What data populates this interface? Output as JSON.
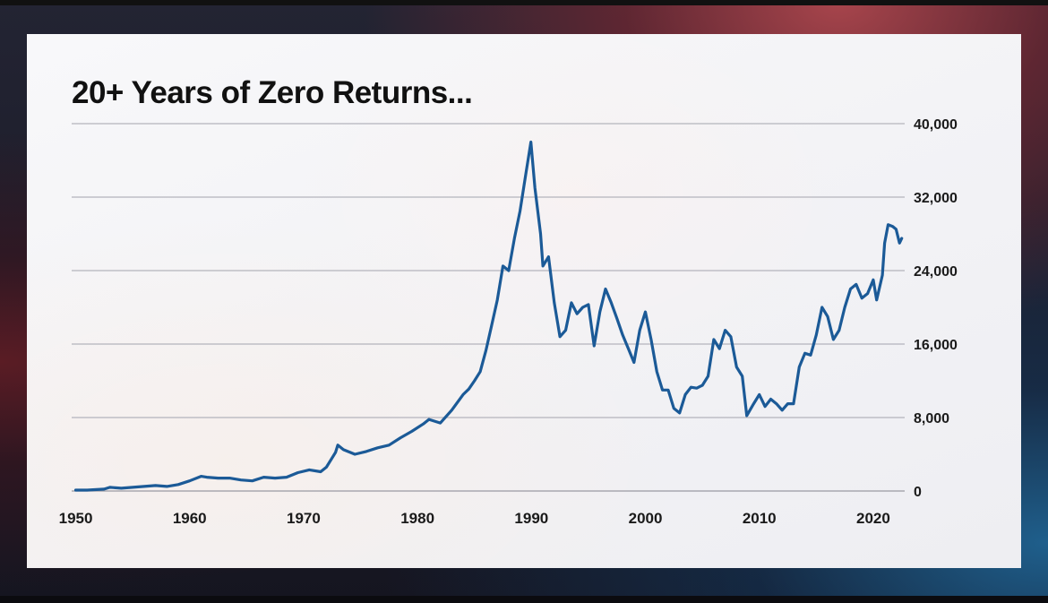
{
  "chart_data": {
    "type": "line",
    "title": "20+ Years of Zero Returns...",
    "xlabel": "",
    "ylabel": "",
    "xlim": [
      1949.8,
      2022.6
    ],
    "ylim": [
      0,
      40000
    ],
    "grid": true,
    "y_axis_side": "right",
    "x_ticks": [
      1950,
      1960,
      1970,
      1980,
      1990,
      2000,
      2010,
      2020
    ],
    "x_tick_labels": [
      "1950",
      "1960",
      "1970",
      "1980",
      "1990",
      "2000",
      "2010",
      "2020"
    ],
    "y_ticks": [
      0,
      8000,
      16000,
      24000,
      32000,
      40000
    ],
    "y_tick_labels": [
      "0",
      "8,000",
      "16,000",
      "24,000",
      "32,000",
      "40,000"
    ],
    "line_color": "#1b5a97",
    "series": [
      {
        "values": [
          [
            1950.0,
            100
          ],
          [
            1951.0,
            100
          ],
          [
            1952.5,
            200
          ],
          [
            1953.0,
            400
          ],
          [
            1954.0,
            300
          ],
          [
            1955.0,
            400
          ],
          [
            1956.0,
            500
          ],
          [
            1957.0,
            600
          ],
          [
            1958.0,
            500
          ],
          [
            1959.0,
            700
          ],
          [
            1960.0,
            1100
          ],
          [
            1961.0,
            1600
          ],
          [
            1961.5,
            1500
          ],
          [
            1962.5,
            1400
          ],
          [
            1963.5,
            1400
          ],
          [
            1964.5,
            1200
          ],
          [
            1965.5,
            1100
          ],
          [
            1966.5,
            1500
          ],
          [
            1967.5,
            1400
          ],
          [
            1968.5,
            1500
          ],
          [
            1969.5,
            2000
          ],
          [
            1970.5,
            2300
          ],
          [
            1971.5,
            2100
          ],
          [
            1972.0,
            2600
          ],
          [
            1972.8,
            4200
          ],
          [
            1973.0,
            5000
          ],
          [
            1973.5,
            4500
          ],
          [
            1974.5,
            4000
          ],
          [
            1975.5,
            4300
          ],
          [
            1976.5,
            4700
          ],
          [
            1977.5,
            5000
          ],
          [
            1978.5,
            5800
          ],
          [
            1979.5,
            6500
          ],
          [
            1980.5,
            7300
          ],
          [
            1981.0,
            7800
          ],
          [
            1982.0,
            7400
          ],
          [
            1983.0,
            8800
          ],
          [
            1984.0,
            10500
          ],
          [
            1984.5,
            11100
          ],
          [
            1985.0,
            12000
          ],
          [
            1985.5,
            13000
          ],
          [
            1986.0,
            15300
          ],
          [
            1986.5,
            18000
          ],
          [
            1987.0,
            20800
          ],
          [
            1987.5,
            24500
          ],
          [
            1988.0,
            24000
          ],
          [
            1988.5,
            27500
          ],
          [
            1989.0,
            30500
          ],
          [
            1989.5,
            34500
          ],
          [
            1989.95,
            38000
          ],
          [
            1990.3,
            33000
          ],
          [
            1990.8,
            28000
          ],
          [
            1991.0,
            24500
          ],
          [
            1991.5,
            25500
          ],
          [
            1992.0,
            20500
          ],
          [
            1992.5,
            16800
          ],
          [
            1993.0,
            17500
          ],
          [
            1993.5,
            20500
          ],
          [
            1994.0,
            19300
          ],
          [
            1994.5,
            20000
          ],
          [
            1995.0,
            20300
          ],
          [
            1995.5,
            15800
          ],
          [
            1996.0,
            19500
          ],
          [
            1996.5,
            22000
          ],
          [
            1997.0,
            20500
          ],
          [
            1997.5,
            18800
          ],
          [
            1998.0,
            17000
          ],
          [
            1998.5,
            15500
          ],
          [
            1999.0,
            14000
          ],
          [
            1999.5,
            17500
          ],
          [
            2000.0,
            19500
          ],
          [
            2000.5,
            16500
          ],
          [
            2001.0,
            13000
          ],
          [
            2001.5,
            11000
          ],
          [
            2002.0,
            11000
          ],
          [
            2002.5,
            9000
          ],
          [
            2003.0,
            8500
          ],
          [
            2003.5,
            10500
          ],
          [
            2004.0,
            11300
          ],
          [
            2004.5,
            11200
          ],
          [
            2005.0,
            11500
          ],
          [
            2005.5,
            12500
          ],
          [
            2006.0,
            16500
          ],
          [
            2006.5,
            15500
          ],
          [
            2007.0,
            17500
          ],
          [
            2007.5,
            16800
          ],
          [
            2008.0,
            13500
          ],
          [
            2008.5,
            12500
          ],
          [
            2008.9,
            8200
          ],
          [
            2009.5,
            9500
          ],
          [
            2010.0,
            10500
          ],
          [
            2010.5,
            9200
          ],
          [
            2011.0,
            10000
          ],
          [
            2011.5,
            9500
          ],
          [
            2012.0,
            8800
          ],
          [
            2012.5,
            9500
          ],
          [
            2013.0,
            9500
          ],
          [
            2013.5,
            13500
          ],
          [
            2014.0,
            15000
          ],
          [
            2014.5,
            14800
          ],
          [
            2015.0,
            17000
          ],
          [
            2015.5,
            20000
          ],
          [
            2016.0,
            19000
          ],
          [
            2016.5,
            16500
          ],
          [
            2017.0,
            17500
          ],
          [
            2017.5,
            20000
          ],
          [
            2018.0,
            22000
          ],
          [
            2018.5,
            22500
          ],
          [
            2019.0,
            21000
          ],
          [
            2019.5,
            21500
          ],
          [
            2020.0,
            23000
          ],
          [
            2020.3,
            20800
          ],
          [
            2020.8,
            23500
          ],
          [
            2021.0,
            27000
          ],
          [
            2021.3,
            29000
          ],
          [
            2021.7,
            28800
          ],
          [
            2022.0,
            28500
          ],
          [
            2022.3,
            27000
          ],
          [
            2022.5,
            27500
          ]
        ]
      }
    ]
  }
}
